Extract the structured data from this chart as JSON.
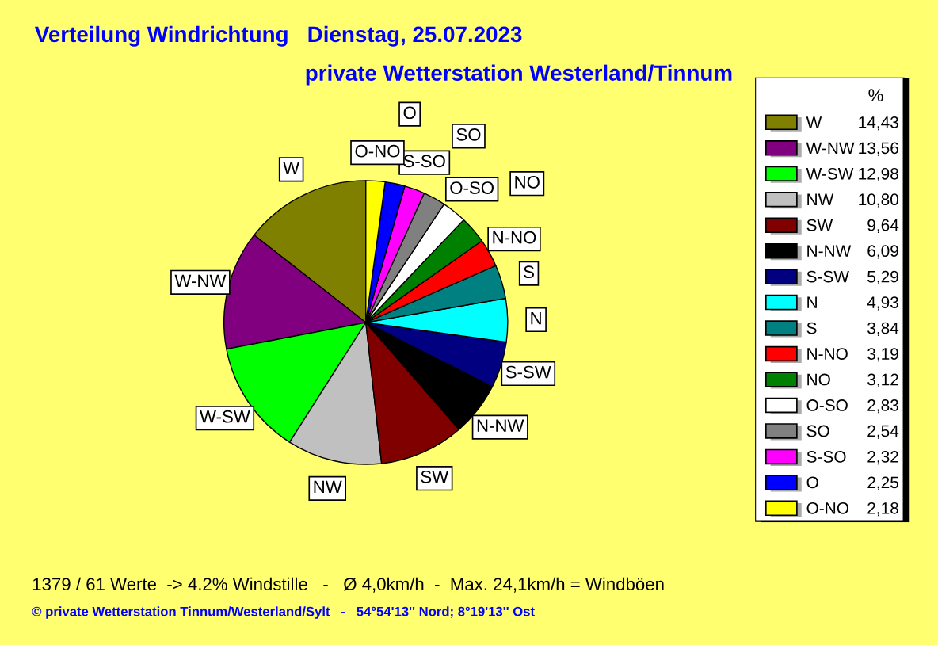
{
  "chart_data": {
    "type": "pie",
    "title": "Verteilung Windrichtung   Dienstag, 25.07.2023",
    "subtitle": "private Wetterstation Westerland/Tinnum",
    "legend_title": "%",
    "categories": [
      "W",
      "W-NW",
      "W-SW",
      "NW",
      "SW",
      "N-NW",
      "S-SW",
      "N",
      "S",
      "N-NO",
      "NO",
      "O-SO",
      "SO",
      "S-SO",
      "O",
      "O-NO"
    ],
    "values": [
      14.43,
      13.56,
      12.98,
      10.8,
      9.64,
      6.09,
      5.29,
      4.93,
      3.84,
      3.19,
      3.12,
      2.83,
      2.54,
      2.32,
      2.25,
      2.18
    ],
    "value_labels": [
      "14,43",
      "13,56",
      "12,98",
      "10,80",
      "9,64",
      "6,09",
      "5,29",
      "4,93",
      "3,84",
      "3,19",
      "3,12",
      "2,83",
      "2,54",
      "2,32",
      "2,25",
      "2,18"
    ],
    "colors": [
      "#808000",
      "#800080",
      "#00ff00",
      "#c0c0c0",
      "#800000",
      "#000000",
      "#000080",
      "#00ffff",
      "#008080",
      "#ff0000",
      "#008000",
      "#ffffff",
      "#808080",
      "#ff00ff",
      "#0000ff",
      "#ffff00"
    ],
    "legend": "right",
    "annotations": [
      "1379 / 61 Werte  -> 4.2% Windstille   -   Ø 4,0km/h  -  Max. 24,1km/h = Windböen",
      "© private Wetterstation Tinnum/Westerland/Sylt   -   54°54'13'' Nord; 8°19'13'' Ost"
    ]
  }
}
